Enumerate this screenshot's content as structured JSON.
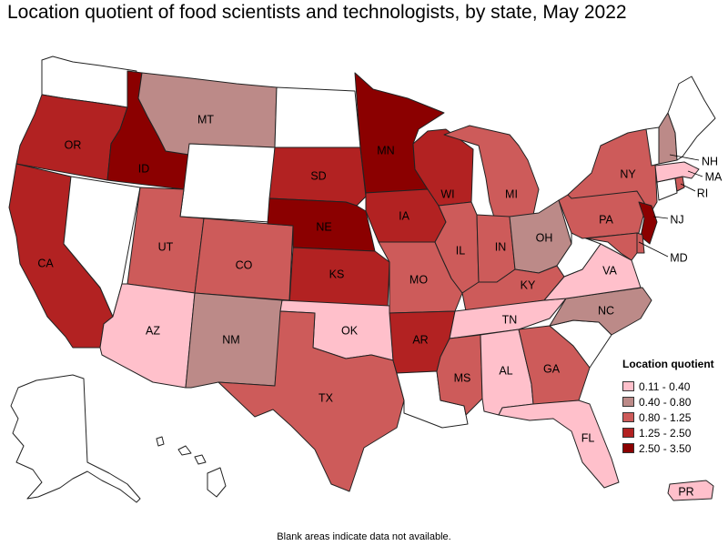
{
  "title": "Location quotient of food scientists and technologists, by state, May 2022",
  "footnote": "Blank areas indicate data not available.",
  "colors": {
    "c1": "#ffc0cb",
    "c2": "#bc8a88",
    "c3": "#cd5b5a",
    "c4": "#b22222",
    "c5": "#8b0000",
    "blank": "#ffffff"
  },
  "legend": {
    "title": "Location quotient",
    "items": [
      {
        "label": "0.11 - 0.40",
        "color": "#ffc0cb"
      },
      {
        "label": "0.40 - 0.80",
        "color": "#bc8a88"
      },
      {
        "label": "0.80 - 1.25",
        "color": "#cd5b5a"
      },
      {
        "label": "1.25 - 2.50",
        "color": "#b22222"
      },
      {
        "label": "2.50 - 3.50",
        "color": "#8b0000"
      }
    ]
  },
  "state_labels": {
    "WA": "",
    "OR": "OR",
    "CA": "CA",
    "ID": "ID",
    "NV": "",
    "MT": "MT",
    "WY": "",
    "UT": "UT",
    "AZ": "AZ",
    "CO": "CO",
    "NM": "NM",
    "ND": "",
    "SD": "SD",
    "NE": "NE",
    "KS": "KS",
    "OK": "OK",
    "TX": "TX",
    "MN": "MN",
    "IA": "IA",
    "MO": "MO",
    "AR": "AR",
    "LA": "",
    "WI": "WI",
    "IL": "IL",
    "MI": "MI",
    "IN": "IN",
    "OH": "OH",
    "KY": "KY",
    "TN": "TN",
    "MS": "MS",
    "AL": "AL",
    "GA": "GA",
    "FL": "FL",
    "SC": "",
    "NC": "NC",
    "VA": "VA",
    "WV": "",
    "PA": "PA",
    "NY": "NY",
    "VT": "",
    "NH": "NH",
    "ME": "",
    "MA": "MA",
    "RI": "RI",
    "CT": "",
    "NJ": "NJ",
    "DE": "",
    "MD": "MD",
    "AK": "",
    "HI": "",
    "PR": "PR"
  },
  "state_class": {
    "WA": "blank",
    "OR": "c4",
    "CA": "c4",
    "ID": "c5",
    "NV": "blank",
    "MT": "c2",
    "WY": "blank",
    "UT": "c3",
    "AZ": "c1",
    "CO": "c3",
    "NM": "c2",
    "ND": "blank",
    "SD": "c4",
    "NE": "c5",
    "KS": "c4",
    "OK": "c1",
    "TX": "c3",
    "MN": "c5",
    "IA": "c4",
    "MO": "c3",
    "AR": "c4",
    "LA": "blank",
    "WI": "c4",
    "IL": "c3",
    "MI": "c3",
    "IN": "c3",
    "OH": "c2",
    "KY": "c3",
    "TN": "c1",
    "MS": "c3",
    "AL": "c1",
    "GA": "c3",
    "FL": "c1",
    "SC": "blank",
    "NC": "c2",
    "VA": "c1",
    "WV": "blank",
    "PA": "c3",
    "NY": "c3",
    "VT": "blank",
    "NH": "c2",
    "ME": "blank",
    "MA": "c1",
    "RI": "c3",
    "CT": "blank",
    "NJ": "c5",
    "DE": "c3",
    "MD": "c3",
    "AK": "blank",
    "HI": "blank",
    "PR": "c1"
  }
}
